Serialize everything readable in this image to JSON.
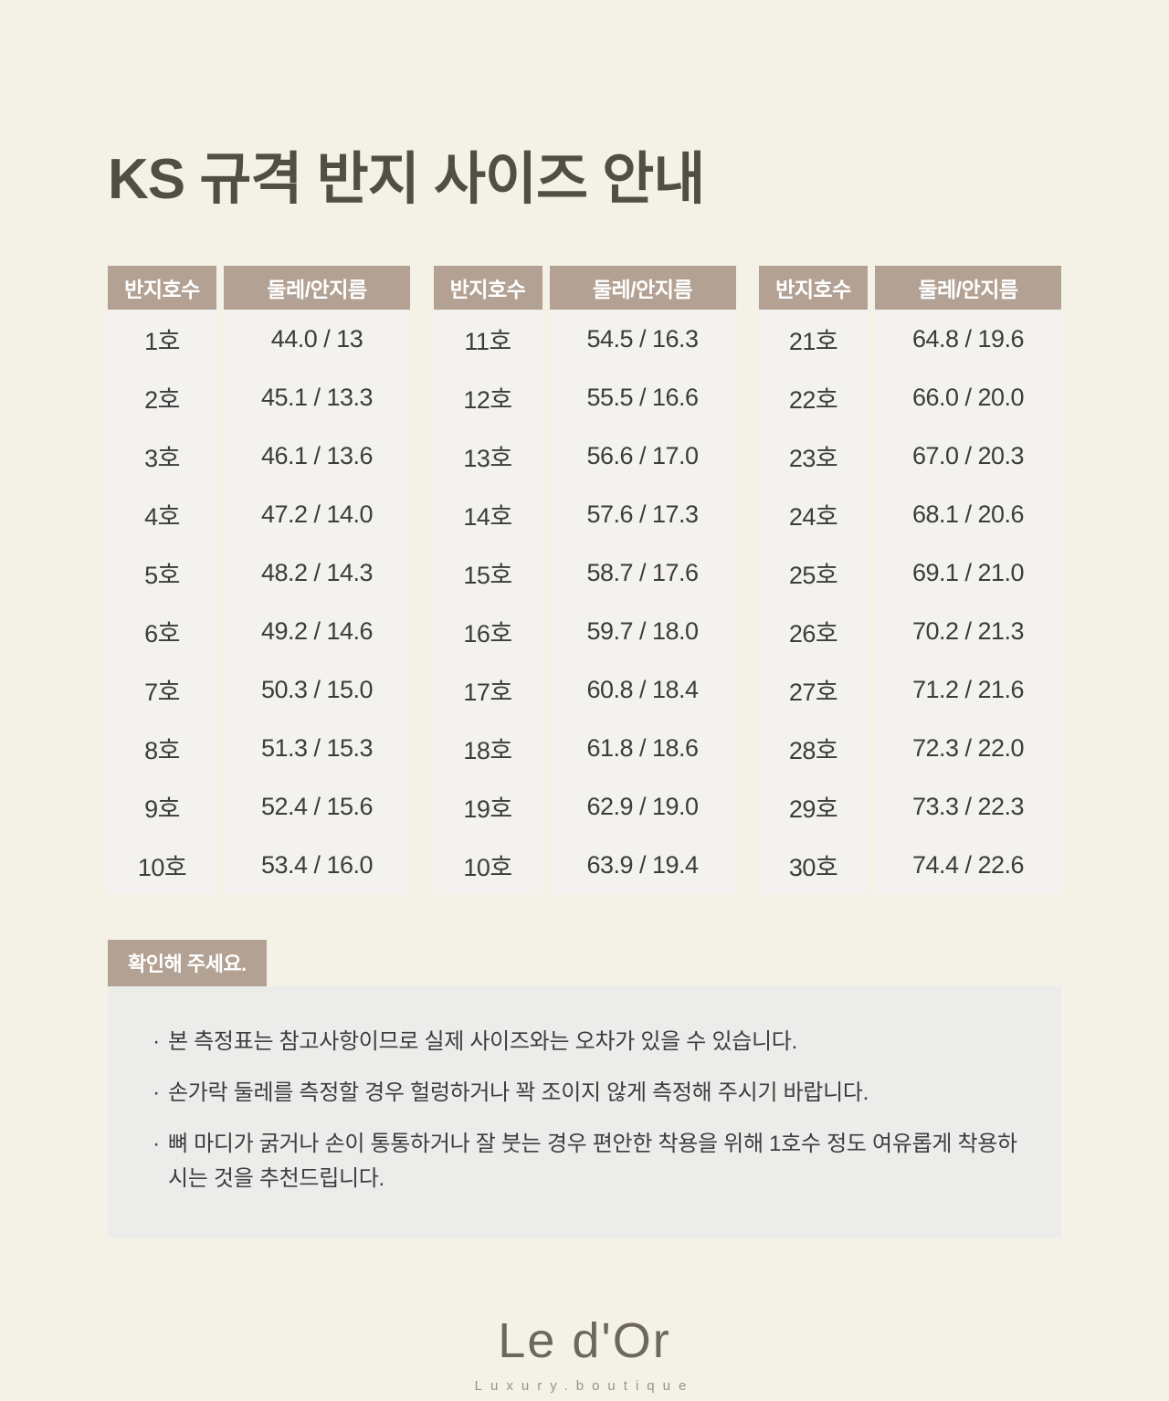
{
  "page": {
    "title": "KS 규격 반지 사이즈 안내",
    "bg_color": "#f4f1e7",
    "accent_color": "#b3a294"
  },
  "table": {
    "col_headers": [
      "반지호수",
      "둘레/안지름"
    ],
    "groups": [
      {
        "rows": [
          [
            "1호",
            "44.0 / 13"
          ],
          [
            "2호",
            "45.1 / 13.3"
          ],
          [
            "3호",
            "46.1 / 13.6"
          ],
          [
            "4호",
            "47.2 / 14.0"
          ],
          [
            "5호",
            "48.2 / 14.3"
          ],
          [
            "6호",
            "49.2 / 14.6"
          ],
          [
            "7호",
            "50.3 / 15.0"
          ],
          [
            "8호",
            "51.3 / 15.3"
          ],
          [
            "9호",
            "52.4 / 15.6"
          ],
          [
            "10호",
            "53.4 / 16.0"
          ]
        ]
      },
      {
        "rows": [
          [
            "11호",
            "54.5 / 16.3"
          ],
          [
            "12호",
            "55.5 / 16.6"
          ],
          [
            "13호",
            "56.6 / 17.0"
          ],
          [
            "14호",
            "57.6 / 17.3"
          ],
          [
            "15호",
            "58.7 / 17.6"
          ],
          [
            "16호",
            "59.7 / 18.0"
          ],
          [
            "17호",
            "60.8 / 18.4"
          ],
          [
            "18호",
            "61.8 / 18.6"
          ],
          [
            "19호",
            "62.9 / 19.0"
          ],
          [
            "10호",
            "63.9 / 19.4"
          ]
        ]
      },
      {
        "rows": [
          [
            "21호",
            "64.8 / 19.6"
          ],
          [
            "22호",
            "66.0 / 20.0"
          ],
          [
            "23호",
            "67.0 / 20.3"
          ],
          [
            "24호",
            "68.1 / 20.6"
          ],
          [
            "25호",
            "69.1 / 21.0"
          ],
          [
            "26호",
            "70.2 / 21.3"
          ],
          [
            "27호",
            "71.2 / 21.6"
          ],
          [
            "28호",
            "72.3 / 22.0"
          ],
          [
            "29호",
            "73.3 / 22.3"
          ],
          [
            "30호",
            "74.4 / 22.6"
          ]
        ]
      }
    ]
  },
  "notes": {
    "badge": "확인해 주세요.",
    "bullet": "·",
    "items": [
      "본 측정표는 참고사항이므로 실제 사이즈와는 오차가 있을 수 있습니다.",
      "손가락 둘레를 측정할 경우 헐렁하거나 꽉 조이지 않게 측정해 주시기 바랍니다.",
      "뼈 마디가 굵거나 손이 통통하거나 잘 붓는 경우 편안한 착용을 위해 1호수 정도 여유롭게 착용하시는 것을 추천드립니다."
    ]
  },
  "footer": {
    "logo": "Le d'Or",
    "tagline": "Luxury.boutique"
  }
}
